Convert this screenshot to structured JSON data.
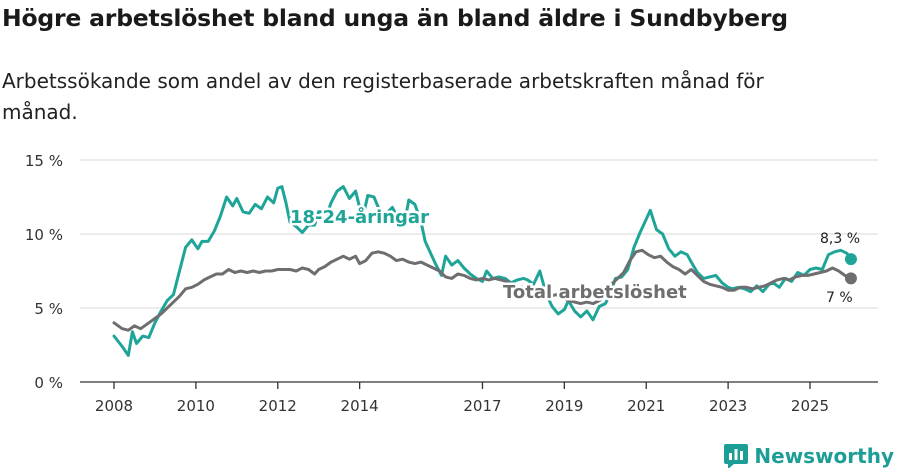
{
  "title": "Högre arbetslöshet bland unga än bland äldre i Sundbyberg",
  "subtitle": "Arbetssökande som andel av den registerbaserade arbetskraften månad för månad.",
  "brand": {
    "name": "Newsworthy",
    "icon": "newsworthy-logo-icon",
    "color": "#1c9e96"
  },
  "chart_data": {
    "type": "line",
    "y_range": [
      0,
      15
    ],
    "y_ticks": [
      0,
      5,
      10,
      15
    ],
    "y_tick_labels": [
      "0 %",
      "5 %",
      "10 %",
      "15 %"
    ],
    "x_range": [
      2008,
      2026.4
    ],
    "x_ticks": [
      2008,
      2010,
      2012,
      2014,
      2017,
      2019,
      2021,
      2023,
      2025
    ],
    "x_tick_labels": [
      "2008",
      "2010",
      "2012",
      "2014",
      "2017",
      "2019",
      "2021",
      "2023",
      "2025"
    ],
    "gridlines": "horizontal",
    "series": [
      {
        "name": "18-24-åringar",
        "label": "18-24-åringar",
        "color": "#1fa598",
        "end_label": "8,3 %",
        "end_value": 8.3,
        "points": [
          [
            2008.0,
            3.1
          ],
          [
            2008.2,
            2.4
          ],
          [
            2008.35,
            1.8
          ],
          [
            2008.45,
            3.4
          ],
          [
            2008.55,
            2.6
          ],
          [
            2008.7,
            3.1
          ],
          [
            2008.85,
            3.0
          ],
          [
            2009.0,
            4.0
          ],
          [
            2009.15,
            4.8
          ],
          [
            2009.3,
            5.5
          ],
          [
            2009.45,
            5.9
          ],
          [
            2009.6,
            7.5
          ],
          [
            2009.75,
            9.1
          ],
          [
            2009.9,
            9.6
          ],
          [
            2010.05,
            9.0
          ],
          [
            2010.15,
            9.5
          ],
          [
            2010.3,
            9.5
          ],
          [
            2010.45,
            10.2
          ],
          [
            2010.6,
            11.2
          ],
          [
            2010.75,
            12.5
          ],
          [
            2010.9,
            11.9
          ],
          [
            2011.0,
            12.4
          ],
          [
            2011.15,
            11.5
          ],
          [
            2011.3,
            11.4
          ],
          [
            2011.45,
            12.0
          ],
          [
            2011.6,
            11.7
          ],
          [
            2011.75,
            12.5
          ],
          [
            2011.9,
            12.1
          ],
          [
            2012.0,
            13.1
          ],
          [
            2012.1,
            13.2
          ],
          [
            2012.2,
            12.1
          ],
          [
            2012.3,
            10.8
          ],
          [
            2012.45,
            10.5
          ],
          [
            2012.6,
            10.1
          ],
          [
            2012.75,
            10.6
          ],
          [
            2012.9,
            10.6
          ],
          [
            2013.0,
            11.5
          ],
          [
            2013.1,
            11.5
          ],
          [
            2013.2,
            11.3
          ],
          [
            2013.3,
            12.1
          ],
          [
            2013.45,
            12.9
          ],
          [
            2013.6,
            13.2
          ],
          [
            2013.75,
            12.4
          ],
          [
            2013.9,
            12.9
          ],
          [
            2014.0,
            11.8
          ],
          [
            2014.1,
            11.4
          ],
          [
            2014.2,
            12.6
          ],
          [
            2014.35,
            12.5
          ],
          [
            2014.5,
            11.5
          ],
          [
            2014.65,
            11.4
          ],
          [
            2014.8,
            11.8
          ],
          [
            2014.95,
            11.0
          ],
          [
            2015.1,
            10.8
          ],
          [
            2015.2,
            12.3
          ],
          [
            2015.35,
            12.0
          ],
          [
            2015.5,
            10.8
          ],
          [
            2015.6,
            9.5
          ],
          [
            2015.75,
            8.6
          ],
          [
            2015.85,
            8.0
          ],
          [
            2016.0,
            7.2
          ],
          [
            2016.1,
            8.5
          ],
          [
            2016.25,
            7.9
          ],
          [
            2016.4,
            8.2
          ],
          [
            2016.55,
            7.7
          ],
          [
            2016.7,
            7.3
          ],
          [
            2016.85,
            7.0
          ],
          [
            2017.0,
            6.8
          ],
          [
            2017.1,
            7.5
          ],
          [
            2017.25,
            7.0
          ],
          [
            2017.4,
            7.1
          ],
          [
            2017.55,
            7.0
          ],
          [
            2017.7,
            6.7
          ],
          [
            2017.85,
            6.9
          ],
          [
            2018.0,
            7.0
          ],
          [
            2018.1,
            6.9
          ],
          [
            2018.25,
            6.6
          ],
          [
            2018.4,
            7.5
          ],
          [
            2018.55,
            6.0
          ],
          [
            2018.7,
            5.1
          ],
          [
            2018.85,
            4.6
          ],
          [
            2019.0,
            4.9
          ],
          [
            2019.1,
            5.5
          ],
          [
            2019.25,
            4.8
          ],
          [
            2019.4,
            4.4
          ],
          [
            2019.55,
            4.8
          ],
          [
            2019.7,
            4.2
          ],
          [
            2019.85,
            5.1
          ],
          [
            2020.0,
            5.3
          ],
          [
            2020.1,
            5.8
          ],
          [
            2020.25,
            7.0
          ],
          [
            2020.4,
            7.1
          ],
          [
            2020.55,
            7.6
          ],
          [
            2020.7,
            9.1
          ],
          [
            2020.85,
            10.1
          ],
          [
            2021.0,
            11.0
          ],
          [
            2021.1,
            11.6
          ],
          [
            2021.25,
            10.3
          ],
          [
            2021.4,
            10.0
          ],
          [
            2021.55,
            9.0
          ],
          [
            2021.7,
            8.5
          ],
          [
            2021.85,
            8.8
          ],
          [
            2022.0,
            8.6
          ],
          [
            2022.1,
            8.1
          ],
          [
            2022.25,
            7.4
          ],
          [
            2022.4,
            7.0
          ],
          [
            2022.55,
            7.1
          ],
          [
            2022.7,
            7.2
          ],
          [
            2022.85,
            6.7
          ],
          [
            2023.0,
            6.4
          ],
          [
            2023.1,
            6.3
          ],
          [
            2023.25,
            6.4
          ],
          [
            2023.4,
            6.3
          ],
          [
            2023.55,
            6.1
          ],
          [
            2023.7,
            6.5
          ],
          [
            2023.85,
            6.1
          ],
          [
            2024.0,
            6.6
          ],
          [
            2024.1,
            6.7
          ],
          [
            2024.25,
            6.4
          ],
          [
            2024.4,
            7.0
          ],
          [
            2024.55,
            6.8
          ],
          [
            2024.7,
            7.4
          ],
          [
            2024.85,
            7.2
          ],
          [
            2025.0,
            7.6
          ],
          [
            2025.15,
            7.7
          ],
          [
            2025.3,
            7.6
          ],
          [
            2025.45,
            8.6
          ],
          [
            2025.6,
            8.8
          ],
          [
            2025.75,
            8.9
          ],
          [
            2025.9,
            8.7
          ],
          [
            2026.0,
            8.3
          ]
        ]
      },
      {
        "name": "Total arbetslöshet",
        "label": "Total arbetslöshet",
        "color": "#6e6e70",
        "end_label": "7 %",
        "end_value": 7.0,
        "points": [
          [
            2008.0,
            4.0
          ],
          [
            2008.2,
            3.6
          ],
          [
            2008.35,
            3.5
          ],
          [
            2008.5,
            3.8
          ],
          [
            2008.65,
            3.6
          ],
          [
            2008.8,
            3.9
          ],
          [
            2009.0,
            4.3
          ],
          [
            2009.15,
            4.6
          ],
          [
            2009.3,
            5.0
          ],
          [
            2009.45,
            5.4
          ],
          [
            2009.6,
            5.8
          ],
          [
            2009.75,
            6.3
          ],
          [
            2009.9,
            6.4
          ],
          [
            2010.05,
            6.6
          ],
          [
            2010.2,
            6.9
          ],
          [
            2010.35,
            7.1
          ],
          [
            2010.5,
            7.3
          ],
          [
            2010.65,
            7.3
          ],
          [
            2010.8,
            7.6
          ],
          [
            2010.95,
            7.4
          ],
          [
            2011.1,
            7.5
          ],
          [
            2011.25,
            7.4
          ],
          [
            2011.4,
            7.5
          ],
          [
            2011.55,
            7.4
          ],
          [
            2011.7,
            7.5
          ],
          [
            2011.85,
            7.5
          ],
          [
            2012.0,
            7.6
          ],
          [
            2012.15,
            7.6
          ],
          [
            2012.3,
            7.6
          ],
          [
            2012.45,
            7.5
          ],
          [
            2012.6,
            7.7
          ],
          [
            2012.75,
            7.6
          ],
          [
            2012.9,
            7.3
          ],
          [
            2013.0,
            7.6
          ],
          [
            2013.15,
            7.8
          ],
          [
            2013.3,
            8.1
          ],
          [
            2013.45,
            8.3
          ],
          [
            2013.6,
            8.5
          ],
          [
            2013.75,
            8.3
          ],
          [
            2013.9,
            8.5
          ],
          [
            2014.0,
            8.0
          ],
          [
            2014.15,
            8.2
          ],
          [
            2014.3,
            8.7
          ],
          [
            2014.45,
            8.8
          ],
          [
            2014.6,
            8.7
          ],
          [
            2014.75,
            8.5
          ],
          [
            2014.9,
            8.2
          ],
          [
            2015.05,
            8.3
          ],
          [
            2015.2,
            8.1
          ],
          [
            2015.35,
            8.0
          ],
          [
            2015.5,
            8.1
          ],
          [
            2015.65,
            7.9
          ],
          [
            2015.8,
            7.7
          ],
          [
            2015.95,
            7.5
          ],
          [
            2016.1,
            7.1
          ],
          [
            2016.25,
            7.0
          ],
          [
            2016.4,
            7.3
          ],
          [
            2016.55,
            7.2
          ],
          [
            2016.7,
            7.0
          ],
          [
            2016.85,
            6.9
          ],
          [
            2017.0,
            7.0
          ],
          [
            2017.15,
            6.9
          ],
          [
            2017.3,
            7.0
          ],
          [
            2017.45,
            6.9
          ],
          [
            2017.6,
            6.8
          ],
          [
            2017.75,
            6.5
          ],
          [
            2017.9,
            6.4
          ],
          [
            2018.05,
            6.4
          ],
          [
            2018.2,
            6.2
          ],
          [
            2018.35,
            6.1
          ],
          [
            2018.5,
            5.9
          ],
          [
            2018.65,
            5.8
          ],
          [
            2018.8,
            5.9
          ],
          [
            2018.95,
            5.7
          ],
          [
            2019.1,
            5.5
          ],
          [
            2019.25,
            5.4
          ],
          [
            2019.4,
            5.3
          ],
          [
            2019.55,
            5.4
          ],
          [
            2019.7,
            5.3
          ],
          [
            2019.85,
            5.5
          ],
          [
            2020.0,
            5.8
          ],
          [
            2020.15,
            6.6
          ],
          [
            2020.3,
            7.0
          ],
          [
            2020.45,
            7.4
          ],
          [
            2020.6,
            8.2
          ],
          [
            2020.75,
            8.8
          ],
          [
            2020.9,
            8.9
          ],
          [
            2021.05,
            8.6
          ],
          [
            2021.2,
            8.4
          ],
          [
            2021.35,
            8.5
          ],
          [
            2021.5,
            8.1
          ],
          [
            2021.65,
            7.8
          ],
          [
            2021.8,
            7.6
          ],
          [
            2021.95,
            7.3
          ],
          [
            2022.1,
            7.6
          ],
          [
            2022.25,
            7.2
          ],
          [
            2022.4,
            6.8
          ],
          [
            2022.55,
            6.6
          ],
          [
            2022.7,
            6.5
          ],
          [
            2022.85,
            6.4
          ],
          [
            2023.0,
            6.2
          ],
          [
            2023.15,
            6.2
          ],
          [
            2023.3,
            6.4
          ],
          [
            2023.45,
            6.4
          ],
          [
            2023.6,
            6.3
          ],
          [
            2023.75,
            6.4
          ],
          [
            2023.9,
            6.5
          ],
          [
            2024.05,
            6.7
          ],
          [
            2024.2,
            6.9
          ],
          [
            2024.35,
            7.0
          ],
          [
            2024.5,
            6.9
          ],
          [
            2024.65,
            7.1
          ],
          [
            2024.8,
            7.2
          ],
          [
            2024.95,
            7.2
          ],
          [
            2025.1,
            7.3
          ],
          [
            2025.25,
            7.4
          ],
          [
            2025.4,
            7.5
          ],
          [
            2025.55,
            7.7
          ],
          [
            2025.7,
            7.5
          ],
          [
            2025.85,
            7.2
          ],
          [
            2026.0,
            7.0
          ]
        ]
      }
    ]
  }
}
